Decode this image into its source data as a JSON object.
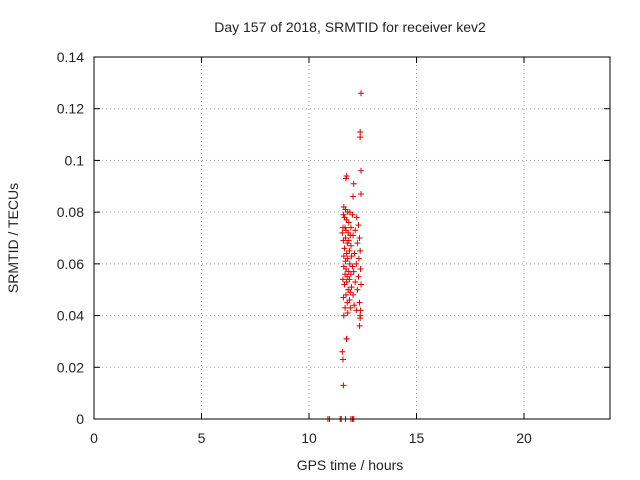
{
  "chart_data": {
    "type": "scatter",
    "title": "Day 157 of 2018, SRMTID for receiver kev2",
    "xlabel": "GPS time / hours",
    "ylabel": "SRMTID / TECUs",
    "xlim": [
      0,
      24
    ],
    "ylim": [
      0,
      0.14
    ],
    "xticks": [
      "0",
      "5",
      "10",
      "15",
      "20"
    ],
    "yticks": [
      "0",
      "0.02",
      "0.04",
      "0.06",
      "0.08",
      "0.1",
      "0.12",
      "0.14"
    ],
    "grid": true,
    "marker": "+",
    "color": "#e00000",
    "series": [
      {
        "name": "kev2",
        "x": [
          12.42,
          12.38,
          12.38,
          12.42,
          12.08,
          11.75,
          11.72,
          12.42,
          12.05,
          11.62,
          11.7,
          11.8,
          11.6,
          11.9,
          12.02,
          11.65,
          12.22,
          11.75,
          11.85,
          12.3,
          11.68,
          11.95,
          11.58,
          11.72,
          12.15,
          11.82,
          11.55,
          11.92,
          12.05,
          11.7,
          12.35,
          11.6,
          11.85,
          12.25,
          11.78,
          11.95,
          11.65,
          12.38,
          11.88,
          11.75,
          12.12,
          11.62,
          11.98,
          12.32,
          11.8,
          11.7,
          12.2,
          11.9,
          12.02,
          11.62,
          12.4,
          11.72,
          11.85,
          12.08,
          11.68,
          11.95,
          12.3,
          11.78,
          11.88,
          11.58,
          12.15,
          11.75,
          12.42,
          11.65,
          11.98,
          11.82,
          12.25,
          11.92,
          11.72,
          12.05,
          11.6,
          11.88,
          12.35,
          12.1,
          11.68,
          11.92,
          12.2,
          11.8,
          12.38,
          11.62,
          11.75,
          11.55,
          11.58,
          11.6,
          11.78,
          11.75,
          12.38,
          12.35,
          12.4,
          10.88,
          10.95,
          11.45,
          11.5,
          11.7,
          11.95,
          12.02,
          12.08
        ],
        "y": [
          0.126,
          0.111,
          0.109,
          0.096,
          0.091,
          0.094,
          0.093,
          0.087,
          0.086,
          0.082,
          0.081,
          0.08,
          0.079,
          0.08,
          0.079,
          0.078,
          0.078,
          0.077,
          0.076,
          0.075,
          0.074,
          0.074,
          0.074,
          0.073,
          0.073,
          0.072,
          0.072,
          0.071,
          0.071,
          0.07,
          0.07,
          0.069,
          0.069,
          0.068,
          0.068,
          0.067,
          0.066,
          0.065,
          0.065,
          0.064,
          0.064,
          0.063,
          0.063,
          0.062,
          0.062,
          0.061,
          0.06,
          0.06,
          0.059,
          0.059,
          0.058,
          0.058,
          0.057,
          0.057,
          0.056,
          0.056,
          0.055,
          0.055,
          0.054,
          0.054,
          0.053,
          0.053,
          0.052,
          0.052,
          0.051,
          0.05,
          0.05,
          0.049,
          0.048,
          0.048,
          0.047,
          0.046,
          0.045,
          0.044,
          0.043,
          0.043,
          0.042,
          0.041,
          0.04,
          0.04,
          0.031,
          0.026,
          0.023,
          0.013,
          0.045,
          0.031,
          0.039,
          0.036,
          0.042,
          0.0,
          0.0,
          0.0,
          0.0,
          0.0,
          0.0,
          0.0,
          0.0
        ]
      }
    ]
  }
}
